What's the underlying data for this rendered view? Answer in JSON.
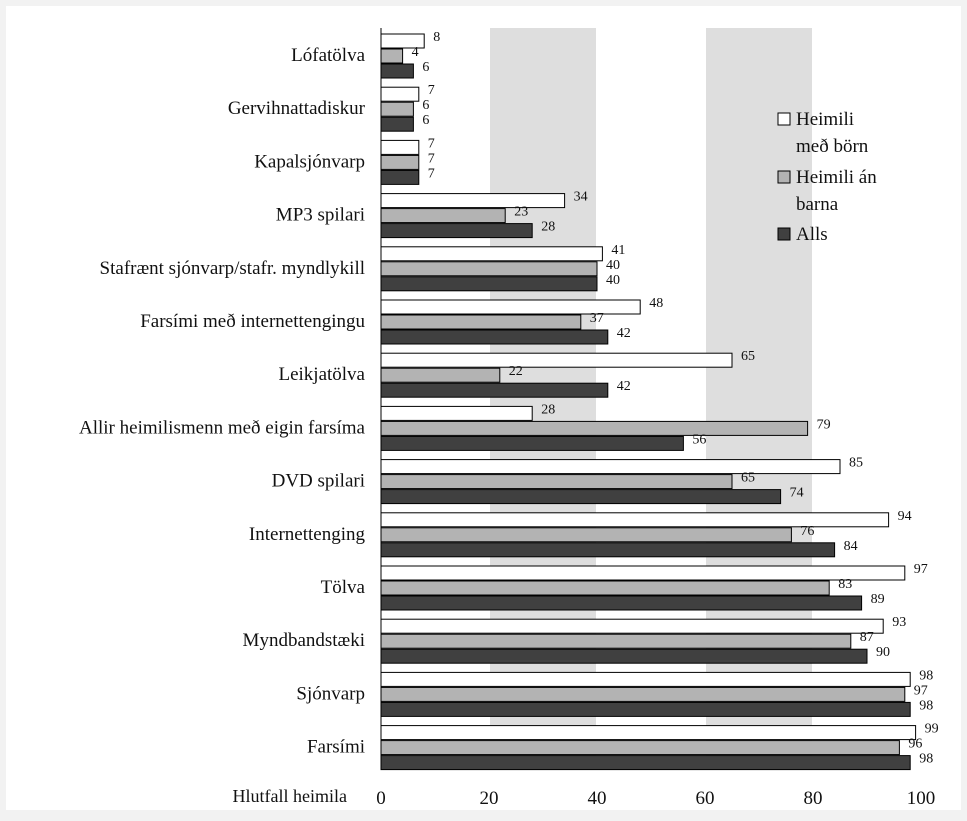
{
  "chart_data": {
    "type": "bar",
    "orientation": "horizontal",
    "categories": [
      "Lófatölva",
      "Gervihnattadiskur",
      "Kapalsjónvarp",
      "MP3 spilari",
      "Stafrænt sjónvarp/stafr. myndlykill",
      "Farsími með internettengingu",
      "Leikjatölva",
      "Allir heimilismenn með eigin farsíma",
      "DVD spilari",
      "Internettenging",
      "Tölva",
      "Myndbandstæki",
      "Sjónvarp",
      "Farsími"
    ],
    "series": [
      {
        "name": "Heimili með börn",
        "color": "#ffffff",
        "values": [
          8,
          7,
          7,
          34,
          41,
          48,
          65,
          28,
          85,
          94,
          97,
          93,
          98,
          99
        ]
      },
      {
        "name": "Heimili án barna",
        "color": "#b3b3b3",
        "values": [
          4,
          6,
          7,
          23,
          40,
          37,
          22,
          79,
          65,
          76,
          83,
          87,
          97,
          96
        ]
      },
      {
        "name": "Alls",
        "color": "#404040",
        "values": [
          6,
          6,
          7,
          28,
          40,
          42,
          42,
          56,
          74,
          84,
          89,
          90,
          98,
          98
        ]
      }
    ],
    "xlabel": "Hlutfall heimila",
    "xlim": [
      0,
      100
    ],
    "xticks": [
      0,
      20,
      40,
      60,
      80,
      100
    ],
    "legend": {
      "position": "top-right",
      "entries": [
        {
          "lines": [
            "Heimili",
            "með börn"
          ]
        },
        {
          "lines": [
            "Heimili án",
            "barna"
          ]
        },
        {
          "lines": [
            "Alls"
          ]
        }
      ]
    },
    "grid": true,
    "alternating_bands": {
      "light": "#ffffff",
      "dark": "#dedede"
    }
  }
}
